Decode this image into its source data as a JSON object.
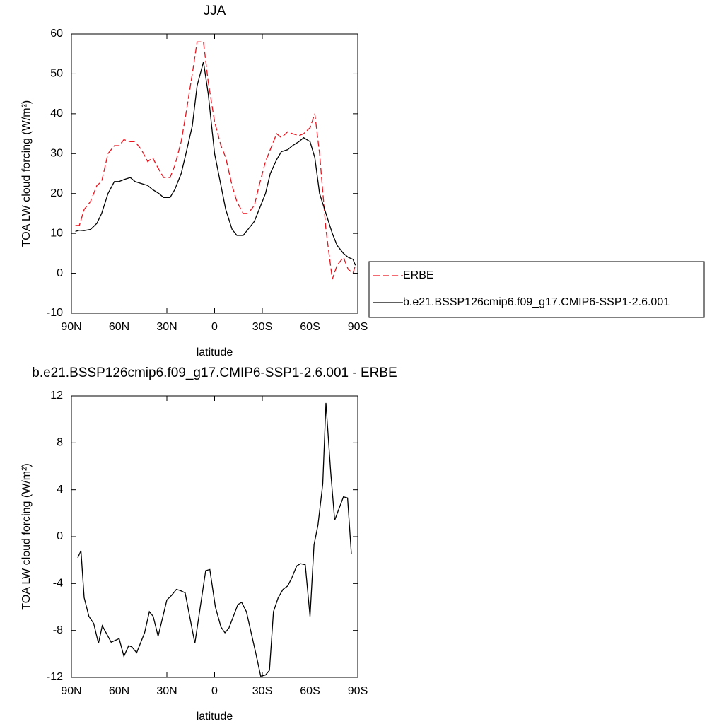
{
  "chart_data": [
    {
      "type": "line",
      "title": "JJA",
      "xlabel": "latitude",
      "ylabel": "TOA LW cloud forcing (W/m²)",
      "xlim": [
        90,
        -90
      ],
      "ylim": [
        -10,
        60
      ],
      "xticks": [
        {
          "value": 90,
          "label": "90N"
        },
        {
          "value": 60,
          "label": "60N"
        },
        {
          "value": 30,
          "label": "30N"
        },
        0,
        {
          "value": -30,
          "label": "30S"
        },
        {
          "value": -60,
          "label": "60S"
        },
        {
          "value": -90,
          "label": "90S"
        }
      ],
      "yticks": [
        -10,
        0,
        10,
        20,
        30,
        40,
        50,
        60
      ],
      "legend": "outside-right",
      "x": [
        87.5,
        85,
        82,
        78,
        74,
        71,
        67,
        63,
        60,
        57,
        53,
        50,
        46,
        42,
        39,
        35,
        32,
        28,
        25,
        21,
        18,
        14,
        11,
        7,
        4,
        0,
        -4,
        -7,
        -11,
        -14,
        -18,
        -21,
        -25,
        -28,
        -32,
        -35,
        -39,
        -42,
        -46,
        -49,
        -53,
        -56,
        -60,
        -63,
        -66,
        -70,
        -74,
        -77,
        -81,
        -84,
        -87,
        -88.5
      ],
      "series": [
        {
          "name": "ERBE",
          "color": "#e8141e",
          "dashed": true,
          "values": [
            12,
            12,
            16,
            18,
            22,
            23,
            30,
            32,
            32,
            33.5,
            33,
            33,
            31,
            28,
            29,
            26,
            24,
            24,
            27,
            33,
            40,
            50,
            58,
            58,
            48,
            38,
            32,
            29,
            22,
            18,
            15,
            15,
            17,
            22,
            28,
            31,
            35,
            34,
            35.5,
            35,
            34.5,
            35,
            36.5,
            40,
            30,
            11,
            -1.5,
            2,
            4,
            1,
            0,
            2
          ]
        },
        {
          "name": "b.e21.BSSP126cmip6.f09_g17.CMIP6-SSP1-2.6.001",
          "color": "#000000",
          "dashed": false,
          "values": [
            10.5,
            10.8,
            10.7,
            11,
            12.5,
            15,
            20,
            23,
            23,
            23.5,
            24,
            23,
            22.5,
            22,
            21,
            20,
            19,
            19,
            21,
            25,
            30,
            37,
            47,
            53,
            45,
            30,
            22,
            16,
            11,
            9.5,
            9.5,
            11,
            13,
            16,
            20,
            25,
            28.5,
            30.5,
            31,
            32,
            33,
            34,
            33,
            29,
            20,
            15,
            10,
            7,
            5,
            4,
            3.5,
            2
          ]
        }
      ]
    },
    {
      "type": "line",
      "title": "b.e21.BSSP126cmip6.f09_g17.CMIP6-SSP1-2.6.001 - ERBE",
      "xlabel": "latitude",
      "ylabel": "TOA LW cloud forcing (W/m²)",
      "xlim": [
        90,
        -90
      ],
      "ylim": [
        -12,
        12
      ],
      "xticks": [
        {
          "value": 90,
          "label": "90N"
        },
        {
          "value": 60,
          "label": "60N"
        },
        {
          "value": 30,
          "label": "30N"
        },
        0,
        {
          "value": -30,
          "label": "30S"
        },
        {
          "value": -60,
          "label": "60S"
        },
        {
          "value": -90,
          "label": "90S"
        }
      ],
      "yticks": [
        -12,
        -8,
        -4,
        0,
        4,
        8,
        12
      ],
      "x": [
        86,
        84,
        82,
        79,
        76,
        73,
        70.6,
        65,
        60,
        57,
        54,
        52,
        49,
        44,
        41,
        38.6,
        35.5,
        30,
        27,
        24,
        21.5,
        18.5,
        12.4,
        5.6,
        3,
        -0.5,
        -4,
        -6.5,
        -9,
        -14.6,
        -17,
        -20,
        -26,
        -29,
        -32,
        -34.5,
        -37,
        -40,
        -43,
        -46,
        -48.6,
        -51.6,
        -54,
        -57,
        -60,
        -62.5,
        -65,
        -68,
        -70,
        -73,
        -75.5,
        -81,
        -83.6,
        -86
      ],
      "series": [
        {
          "color": "#000000",
          "dashed": false,
          "values": [
            -1.8,
            -1.2,
            -5.2,
            -6.8,
            -7.4,
            -9.1,
            -7.6,
            -9,
            -8.7,
            -10.2,
            -9.3,
            -9.4,
            -9.9,
            -8.2,
            -6.4,
            -6.8,
            -8.5,
            -5.4,
            -5,
            -4.5,
            -4.6,
            -4.8,
            -9.1,
            -2.9,
            -2.8,
            -6,
            -7.7,
            -8.2,
            -7.8,
            -5.8,
            -5.6,
            -6.4,
            -10,
            -11.9,
            -11.8,
            -11.4,
            -6.4,
            -5.2,
            -4.5,
            -4.2,
            -3.5,
            -2.5,
            -2.3,
            -2.4,
            -6.8,
            -0.7,
            1,
            4.5,
            11.4,
            5.5,
            1.4,
            3.4,
            3.3,
            -1.5
          ]
        }
      ]
    }
  ]
}
